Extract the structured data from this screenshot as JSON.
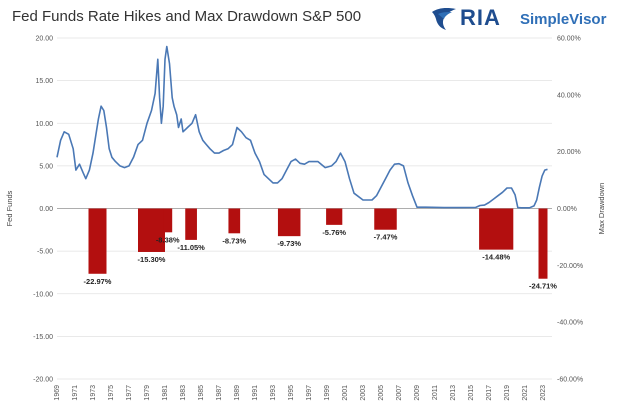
{
  "header": {
    "title": "Fed Funds Rate Hikes and Max Drawdown S&P 500",
    "logo_text": "RIA",
    "logo_subtext": "SimpleVisor"
  },
  "colors": {
    "line": "#4a78b5",
    "bar": "#b30f0f",
    "grid": "#e2e2e2",
    "logo_dark": "#1f4d8f",
    "logo_light": "#2f6fb7"
  },
  "chart_data": {
    "type": "bar",
    "title": "Fed Funds Rate Hikes and Max Drawdown S&P 500",
    "ylabel": "Fed Funds",
    "y2label": "Max Drawdown",
    "ylim": [
      -20,
      20
    ],
    "y2lim": [
      -0.6,
      0.6
    ],
    "y_ticks": [
      "20.00",
      "15.00",
      "10.00",
      "5.00",
      "0.00",
      "-5.00",
      "-10.00",
      "-15.00",
      "-20.00"
    ],
    "y2_ticks": [
      "60.00%",
      "40.00%",
      "20.00%",
      "0.00%",
      "-20.00%",
      "-40.00%",
      "-60.00%"
    ],
    "x_range": [
      1969,
      2024
    ],
    "x_ticks": [
      "1969",
      "1971",
      "1973",
      "1975",
      "1977",
      "1979",
      "1981",
      "1983",
      "1985",
      "1987",
      "1989",
      "1991",
      "1993",
      "1995",
      "1997",
      "1999",
      "2001",
      "2003",
      "2005",
      "2007",
      "2009",
      "2011",
      "2013",
      "2015",
      "2017",
      "2019",
      "2021",
      "2023"
    ],
    "bars": [
      {
        "x": 1973.5,
        "width": 2,
        "value": -0.2297,
        "label": "-22.97%"
      },
      {
        "x": 1979.5,
        "width": 3,
        "value": -0.153,
        "label": "-15.30%"
      },
      {
        "x": 1981.3,
        "width": 1,
        "value": -0.0838,
        "label": "-8.38%"
      },
      {
        "x": 1983.9,
        "width": 1.3,
        "value": -0.1105,
        "label": "-11.05%"
      },
      {
        "x": 1988.7,
        "width": 1.3,
        "value": -0.0873,
        "label": "-8.73%"
      },
      {
        "x": 1994.8,
        "width": 2.5,
        "value": -0.0973,
        "label": "-9.73%"
      },
      {
        "x": 1999.8,
        "width": 1.8,
        "value": -0.0576,
        "label": "-5.76%"
      },
      {
        "x": 2005.5,
        "width": 2.5,
        "value": -0.0747,
        "label": "-7.47%"
      },
      {
        "x": 2017.8,
        "width": 3.8,
        "value": -0.1448,
        "label": "-14.48%"
      },
      {
        "x": 2023.0,
        "width": 1.0,
        "value": -0.2471,
        "label": "-24.71%"
      }
    ],
    "series": [
      {
        "type": "line",
        "x": [
          1969,
          1969.4,
          1969.8,
          1970.3,
          1970.8,
          1971.1,
          1971.5,
          1971.9,
          1972.2,
          1972.6,
          1973.0,
          1973.3,
          1973.6,
          1973.9,
          1974.2,
          1974.5,
          1974.8,
          1975.1,
          1975.5,
          1976.0,
          1976.5,
          1977.0,
          1977.5,
          1978.0,
          1978.5,
          1979.0,
          1979.5,
          1979.9,
          1980.2,
          1980.4,
          1980.6,
          1980.8,
          1981.0,
          1981.2,
          1981.5,
          1981.8,
          1982.0,
          1982.3,
          1982.5,
          1982.8,
          1983.0,
          1983.5,
          1984.0,
          1984.4,
          1984.8,
          1985.2,
          1985.6,
          1986.0,
          1986.5,
          1987.0,
          1987.5,
          1988.0,
          1988.5,
          1989.0,
          1989.5,
          1990.0,
          1990.5,
          1991.0,
          1991.5,
          1992.0,
          1992.5,
          1993.0,
          1993.5,
          1994.0,
          1994.5,
          1995.0,
          1995.5,
          1996.0,
          1996.5,
          1997.0,
          1998.0,
          1998.8,
          1999.5,
          2000.0,
          2000.5,
          2001.0,
          2001.5,
          2002.0,
          2003.0,
          2004.0,
          2004.5,
          2005.0,
          2005.5,
          2006.0,
          2006.5,
          2007.0,
          2007.5,
          2008.0,
          2008.5,
          2009.0,
          2010.0,
          2012.0,
          2014.0,
          2015.5,
          2016.0,
          2016.5,
          2017.0,
          2017.5,
          2018.0,
          2018.5,
          2019.0,
          2019.5,
          2019.9,
          2020.2,
          2020.6,
          2021.0,
          2021.5,
          2022.0,
          2022.3,
          2022.6,
          2022.9,
          2023.2,
          2023.5
        ],
        "y": [
          6.0,
          8.0,
          9.0,
          8.7,
          7.0,
          4.5,
          5.2,
          4.2,
          3.5,
          4.5,
          6.5,
          8.5,
          10.5,
          12.0,
          11.5,
          9.5,
          7.0,
          6.0,
          5.5,
          5.0,
          4.8,
          5.0,
          6.0,
          7.5,
          8.0,
          10.0,
          11.5,
          13.5,
          17.5,
          13.0,
          10.0,
          12.0,
          17.5,
          19.0,
          17.0,
          13.0,
          12.0,
          11.0,
          9.5,
          10.5,
          9.0,
          9.5,
          10.0,
          11.0,
          9.0,
          8.0,
          7.5,
          7.0,
          6.5,
          6.5,
          6.8,
          7.0,
          7.5,
          9.5,
          9.0,
          8.3,
          8.0,
          6.5,
          5.5,
          4.0,
          3.5,
          3.0,
          3.0,
          3.5,
          4.5,
          5.5,
          5.8,
          5.3,
          5.2,
          5.5,
          5.5,
          4.8,
          5.0,
          5.5,
          6.5,
          5.5,
          3.5,
          1.8,
          1.0,
          1.0,
          1.5,
          2.5,
          3.5,
          4.5,
          5.2,
          5.25,
          5.0,
          3.0,
          1.5,
          0.15,
          0.15,
          0.1,
          0.1,
          0.12,
          0.35,
          0.4,
          0.7,
          1.1,
          1.5,
          1.9,
          2.4,
          2.4,
          1.6,
          0.1,
          0.08,
          0.08,
          0.08,
          0.3,
          1.0,
          2.5,
          3.8,
          4.5,
          4.6
        ]
      }
    ],
    "grid": true
  }
}
